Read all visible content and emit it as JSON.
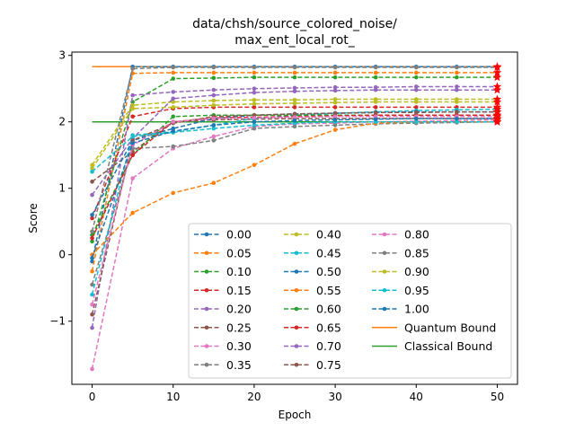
{
  "chart_data": {
    "type": "line",
    "title_line1": "data/chsh/source_colored_noise/",
    "title_line2": "max_ent_local_rot_",
    "xlabel": "Epoch",
    "ylabel": "Score",
    "xlim": [
      -2.5,
      52.5
    ],
    "ylim": [
      -1.95,
      3.05
    ],
    "xticks": [
      0,
      10,
      20,
      30,
      40,
      50
    ],
    "yticks": [
      -1,
      0,
      1,
      2,
      3
    ],
    "grid": false,
    "legend_position": "lower-right",
    "legend_columns": 3,
    "x": [
      0,
      5,
      10,
      15,
      20,
      25,
      30,
      35,
      40,
      45,
      50
    ],
    "series": [
      {
        "name": "0.00",
        "color": "#1f77b4",
        "style": "dashed",
        "values": [
          -0.1,
          2.83,
          2.83,
          2.83,
          2.83,
          2.83,
          2.83,
          2.83,
          2.83,
          2.83,
          2.83
        ]
      },
      {
        "name": "0.05",
        "color": "#ff7f0e",
        "style": "dashed",
        "values": [
          -0.25,
          2.73,
          2.74,
          2.74,
          2.74,
          2.74,
          2.74,
          2.74,
          2.74,
          2.74,
          2.74
        ]
      },
      {
        "name": "0.10",
        "color": "#2ca02c",
        "style": "dashed",
        "values": [
          0.2,
          2.3,
          2.65,
          2.66,
          2.67,
          2.67,
          2.67,
          2.67,
          2.67,
          2.67,
          2.67
        ]
      },
      {
        "name": "0.15",
        "color": "#d62728",
        "style": "dashed",
        "values": [
          0.55,
          2.08,
          2.2,
          2.22,
          2.22,
          2.22,
          2.22,
          2.22,
          2.22,
          2.22,
          2.22
        ]
      },
      {
        "name": "0.20",
        "color": "#9467bd",
        "style": "dashed",
        "values": [
          -1.1,
          2.4,
          2.45,
          2.48,
          2.5,
          2.51,
          2.52,
          2.52,
          2.53,
          2.53,
          2.53
        ]
      },
      {
        "name": "0.25",
        "color": "#8c564b",
        "style": "dashed",
        "values": [
          1.1,
          1.55,
          2.0,
          2.03,
          2.04,
          2.05,
          2.05,
          2.05,
          2.05,
          2.05,
          2.05
        ]
      },
      {
        "name": "0.30",
        "color": "#e377c2",
        "style": "dashed",
        "values": [
          -1.72,
          1.15,
          1.6,
          1.78,
          1.93,
          1.97,
          1.98,
          2.0,
          2.01,
          2.02,
          2.03
        ]
      },
      {
        "name": "0.35",
        "color": "#7f7f7f",
        "style": "dashed",
        "values": [
          -0.45,
          1.6,
          1.63,
          1.72,
          1.9,
          1.93,
          1.95,
          1.97,
          1.98,
          1.99,
          2.0
        ]
      },
      {
        "name": "0.40",
        "color": "#bcbd22",
        "style": "dashed",
        "values": [
          1.35,
          2.25,
          2.3,
          2.32,
          2.33,
          2.33,
          2.34,
          2.34,
          2.34,
          2.34,
          2.34
        ]
      },
      {
        "name": "0.45",
        "color": "#17becf",
        "style": "dashed",
        "values": [
          -0.6,
          1.8,
          1.85,
          1.95,
          2.05,
          2.1,
          2.13,
          2.15,
          2.17,
          2.18,
          2.19
        ]
      },
      {
        "name": "0.50",
        "color": "#1f77b4",
        "style": "dashed",
        "values": [
          0.6,
          1.72,
          1.9,
          2.05,
          2.1,
          2.12,
          2.13,
          2.14,
          2.15,
          2.15,
          2.15
        ]
      },
      {
        "name": "0.55",
        "color": "#ff7f0e",
        "style": "dashed",
        "values": [
          0.0,
          0.63,
          0.93,
          1.08,
          1.35,
          1.67,
          1.88,
          1.98,
          2.0,
          2.0,
          2.0
        ]
      },
      {
        "name": "0.60",
        "color": "#2ca02c",
        "style": "dashed",
        "values": [
          0.3,
          1.5,
          2.08,
          2.1,
          2.1,
          2.1,
          2.1,
          2.1,
          2.1,
          2.1,
          2.1
        ]
      },
      {
        "name": "0.65",
        "color": "#d62728",
        "style": "dashed",
        "values": [
          0.25,
          1.5,
          2.0,
          2.06,
          2.07,
          2.08,
          2.09,
          2.1,
          2.1,
          2.1,
          2.1
        ]
      },
      {
        "name": "0.70",
        "color": "#9467bd",
        "style": "dashed",
        "values": [
          0.9,
          1.75,
          2.35,
          2.4,
          2.44,
          2.46,
          2.47,
          2.48,
          2.48,
          2.48,
          2.48
        ]
      },
      {
        "name": "0.75",
        "color": "#8c564b",
        "style": "dashed",
        "values": [
          -0.9,
          1.72,
          1.98,
          2.08,
          2.1,
          2.12,
          2.13,
          2.14,
          2.14,
          2.15,
          2.15
        ]
      },
      {
        "name": "0.80",
        "color": "#e377c2",
        "style": "dashed",
        "values": [
          -0.75,
          1.65,
          2.0,
          2.05,
          2.06,
          2.07,
          2.08,
          2.08,
          2.08,
          2.08,
          2.08
        ]
      },
      {
        "name": "0.85",
        "color": "#7f7f7f",
        "style": "dashed",
        "values": [
          0.35,
          2.8,
          2.82,
          2.82,
          2.82,
          2.82,
          2.82,
          2.82,
          2.82,
          2.82,
          2.82
        ]
      },
      {
        "name": "0.90",
        "color": "#bcbd22",
        "style": "dashed",
        "values": [
          1.3,
          2.2,
          2.22,
          2.25,
          2.27,
          2.28,
          2.29,
          2.3,
          2.3,
          2.3,
          2.3
        ]
      },
      {
        "name": "0.95",
        "color": "#17becf",
        "style": "dashed",
        "values": [
          1.25,
          1.78,
          1.84,
          1.9,
          1.95,
          1.98,
          2.0,
          2.0,
          2.0,
          2.0,
          2.0
        ]
      },
      {
        "name": "1.00",
        "color": "#1f77b4",
        "style": "dashed",
        "values": [
          -0.05,
          1.68,
          1.86,
          1.95,
          2.0,
          2.02,
          2.03,
          2.04,
          2.05,
          2.05,
          2.05
        ]
      }
    ],
    "bounds": [
      {
        "name": "Quantum Bound",
        "color": "#ff7f0e",
        "value": 2.83
      },
      {
        "name": "Classical Bound",
        "color": "#2ca02c",
        "value": 2.0
      }
    ],
    "end_marker_color": "#ff0000"
  }
}
